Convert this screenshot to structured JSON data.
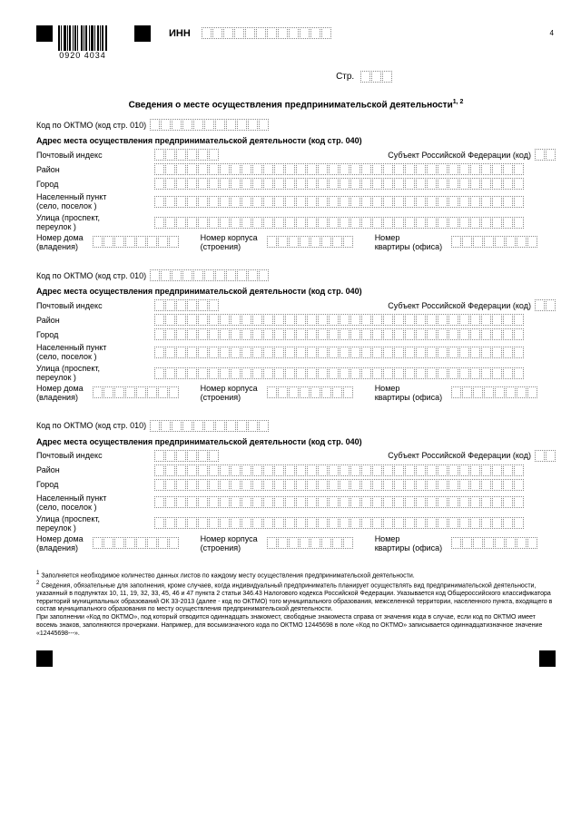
{
  "header": {
    "barcode_number": "0920 4034",
    "inn_label": "ИНН",
    "inn_cells": 12,
    "page_number": "4",
    "str_label": "Стр.",
    "str_cells": 3
  },
  "title": "Сведения о месте осуществления предпринимательской деятельности",
  "title_sup": "1, 2",
  "labels": {
    "oktmo": "Код по ОКТМО (код стр. 010)",
    "oktmo_cells": 11,
    "address_heading": "Адрес места осуществления предпринимательской деятельности (код стр. 040)",
    "postal": "Почтовый индекс",
    "postal_cells": 6,
    "subject": "Субъект Российской Федерации (код)",
    "subject_cells": 2,
    "district": "Район",
    "city": "Город",
    "settlement_l1": "Населенный пункт",
    "settlement_l2": "(село, поселок )",
    "street_l1": "Улица (проспект,",
    "street_l2": "переулок )",
    "long_cells": 34,
    "house_l1": "Номер дома",
    "house_l2": "(владения)",
    "house_cells": 8,
    "building_l1": "Номер корпуса",
    "building_l2": "(строения)",
    "building_cells": 8,
    "apt_l1": "Номер",
    "apt_l2": "квартиры (офиса)",
    "apt_cells": 8
  },
  "footnotes": {
    "f1": "Заполняется необходимое количество данных листов по каждому месту осуществления предпринимательской деятельности.",
    "f2": "Сведения, обязательные для заполнения, кроме случаев, когда индивидуальный предприниматель планирует осуществлять вид предпринимательской деятельности, указанный в подпунктах 10, 11, 19, 32, 33, 45, 46 и 47 пункта 2 статьи 346.43 Налогового кодекса Российской Федерации. Указывается код Общероссийского классификатора территорий муниципальных образований ОК 33-2013 (далее - код по ОКТМО) того муниципального образования, межселенной территории, населенного пункта, входящего в состав муниципального образования по месту осуществления предпринимательской деятельности.",
    "f3": "При заполнении «Код по ОКТМО», под который отводится одиннадцать знакомест, свободные знакоместа справа от значения кода в случае, если код по ОКТМО имеет восемь знаков, заполняются прочерками. Например, для восьмизначного кода по ОКТМО 12445698 в поле «Код по ОКТМО» записывается одиннадцатизначное значение «12445698---»."
  }
}
